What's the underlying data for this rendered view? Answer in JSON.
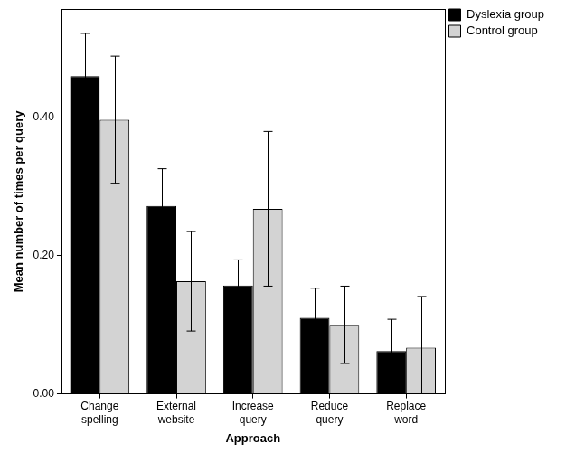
{
  "chart_data": {
    "type": "bar",
    "x_label": "Approach",
    "y_label": "Mean number of times per query",
    "categories": [
      "Change spelling",
      "External website",
      "Increase query",
      "Reduce query",
      "Replace word"
    ],
    "series": [
      {
        "name": "Dyslexia group",
        "color": "#000000",
        "values": [
          0.46,
          0.272,
          0.157,
          0.11,
          0.062
        ],
        "errors": [
          0.062,
          0.054,
          0.037,
          0.043,
          0.046
        ]
      },
      {
        "name": "Control group",
        "color": "#d3d3d3",
        "values": [
          0.397,
          0.163,
          0.268,
          0.1,
          0.067
        ],
        "errors": [
          0.092,
          0.072,
          0.112,
          0.056,
          0.074
        ]
      }
    ],
    "ylim": [
      0,
      0.557
    ],
    "yticks": [
      {
        "value": 0,
        "label": "0.00"
      },
      {
        "value": 0.2,
        "label": "0.20"
      },
      {
        "value": 0.4,
        "label": "0.40"
      }
    ],
    "grid": false,
    "legend": "right"
  }
}
